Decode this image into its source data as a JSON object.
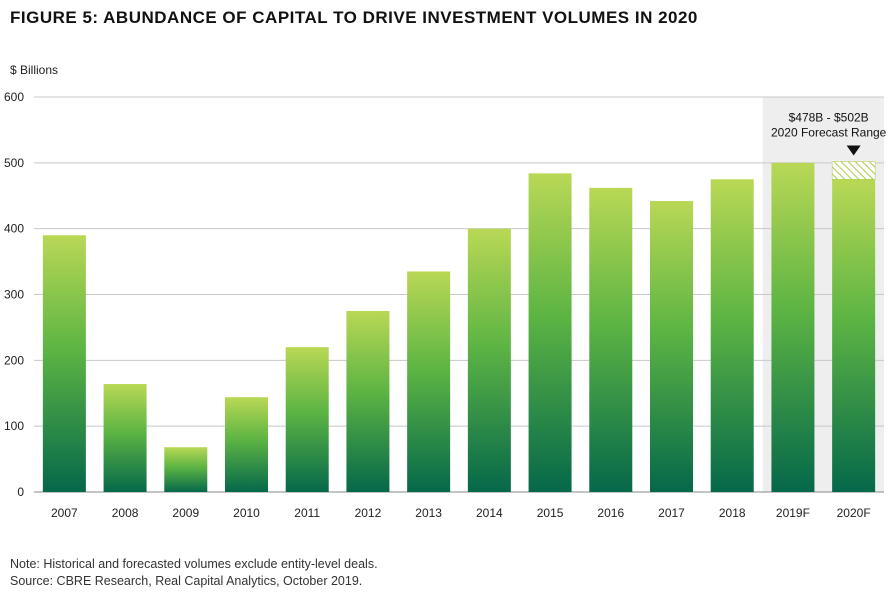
{
  "chart_data": {
    "type": "bar",
    "title": "FIGURE 5: ABUNDANCE OF CAPITAL TO DRIVE INVESTMENT VOLUMES IN 2020",
    "ylabel": "$ Billions",
    "xlabel": "",
    "ylim": [
      0,
      600
    ],
    "yticks": [
      0,
      100,
      200,
      300,
      400,
      500,
      600
    ],
    "grid": true,
    "categories": [
      "2007",
      "2008",
      "2009",
      "2010",
      "2011",
      "2012",
      "2013",
      "2014",
      "2015",
      "2016",
      "2017",
      "2018",
      "2019F",
      "2020F"
    ],
    "values": [
      390,
      164,
      68,
      144,
      220,
      275,
      335,
      400,
      484,
      462,
      442,
      475,
      500,
      475
    ],
    "forecast_categories": [
      "2019F",
      "2020F"
    ],
    "forecast_range": {
      "category": "2020F",
      "low": 478,
      "high": 502,
      "label_line1": "$478B - $502B",
      "label_line2": "2020 Forecast Range"
    },
    "colors": {
      "bar_top": "#b9d855",
      "bar_mid": "#5cb443",
      "bar_bottom": "#05684a",
      "forecast_band": "#eeeeee",
      "range_hatch": "#a8cc4a",
      "grid": "#c8c8c8"
    }
  },
  "footer": {
    "note": "Note: Historical and forecasted volumes exclude entity-level deals.",
    "source": "Source: CBRE Research, Real Capital Analytics, October 2019."
  }
}
